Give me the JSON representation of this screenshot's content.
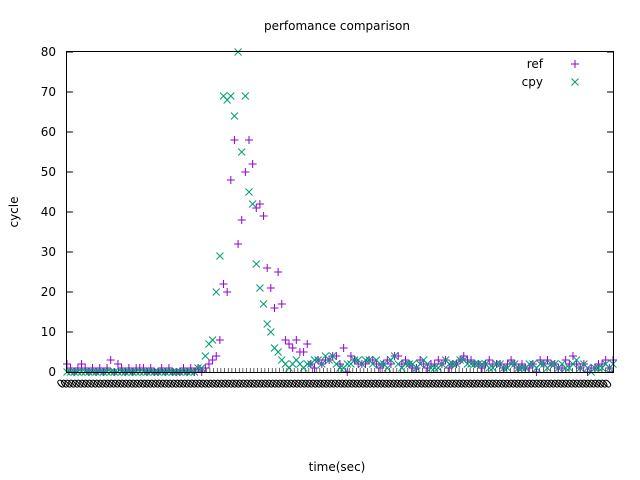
{
  "chart_data": {
    "type": "scatter",
    "title": "perfomance comparison",
    "xlabel": "time(sec)",
    "ylabel": "cycle",
    "xlim": [
      0,
      150
    ],
    "ylim": [
      0,
      80
    ],
    "yticks": [
      0,
      10,
      20,
      30,
      40,
      50,
      60,
      70,
      80
    ],
    "xtick_label": "0",
    "xtick_count": 150,
    "legend_position": "top-right",
    "grid": false,
    "series": [
      {
        "name": "ref",
        "marker": "plus",
        "color": "#9400d3",
        "x": [
          0,
          1,
          2,
          3,
          4,
          5,
          6,
          7,
          8,
          9,
          10,
          11,
          12,
          13,
          14,
          15,
          16,
          17,
          18,
          19,
          20,
          21,
          22,
          23,
          24,
          25,
          26,
          27,
          28,
          29,
          30,
          31,
          32,
          33,
          34,
          35,
          36,
          37,
          38,
          39,
          40,
          41,
          42,
          43,
          44,
          45,
          46,
          47,
          48,
          49,
          50,
          51,
          52,
          53,
          54,
          55,
          56,
          57,
          58,
          59,
          60,
          61,
          62,
          63,
          64,
          65,
          66,
          67,
          68,
          69,
          70,
          71,
          72,
          73,
          74,
          75,
          76,
          77,
          78,
          79,
          80,
          81,
          82,
          83,
          84,
          85,
          86,
          87,
          88,
          89,
          90,
          91,
          92,
          93,
          94,
          95,
          96,
          97,
          98,
          99,
          100,
          101,
          102,
          103,
          104,
          105,
          106,
          107,
          108,
          109,
          110,
          111,
          112,
          113,
          114,
          115,
          116,
          117,
          118,
          119,
          120,
          121,
          122,
          123,
          124,
          125,
          126,
          127,
          128,
          129,
          130,
          131,
          132,
          133,
          134,
          135,
          136,
          137,
          138,
          139,
          140,
          141,
          142,
          143,
          144,
          145,
          146,
          147,
          148,
          149,
          150
        ],
        "y": [
          2,
          1,
          0,
          1,
          2,
          1,
          0,
          1,
          0,
          1,
          0,
          1,
          3,
          0,
          2,
          1,
          0,
          1,
          0,
          1,
          1,
          1,
          0,
          1,
          0,
          0,
          1,
          0,
          1,
          0,
          0,
          0,
          1,
          0,
          1,
          0,
          1,
          0,
          1,
          2,
          3,
          4,
          8,
          22,
          20,
          48,
          58,
          32,
          38,
          50,
          58,
          52,
          41,
          42,
          39,
          26,
          21,
          16,
          25,
          17,
          8,
          7,
          6,
          8,
          5,
          5,
          7,
          2,
          1,
          3,
          2,
          3,
          3,
          4,
          4,
          2,
          6,
          0,
          4,
          3,
          2,
          2,
          2,
          3,
          3,
          2,
          1,
          2,
          3,
          2,
          4,
          4,
          2,
          3,
          2,
          1,
          1,
          3,
          2,
          1,
          2,
          2,
          3,
          2,
          3,
          1,
          2,
          2,
          3,
          4,
          3,
          3,
          2,
          2,
          1,
          2,
          3,
          2,
          2,
          2,
          1,
          2,
          3,
          2,
          1,
          2,
          1,
          1,
          2,
          0,
          3,
          2,
          3,
          2,
          2,
          1,
          1,
          3,
          2,
          4,
          2,
          1,
          2,
          0,
          1,
          1,
          2,
          2,
          3,
          1,
          3
        ]
      },
      {
        "name": "cpy",
        "marker": "cross",
        "color": "#009e73",
        "x": [
          0,
          1,
          2,
          3,
          4,
          5,
          6,
          7,
          8,
          9,
          10,
          11,
          12,
          13,
          14,
          15,
          16,
          17,
          18,
          19,
          20,
          21,
          22,
          23,
          24,
          25,
          26,
          27,
          28,
          29,
          30,
          31,
          32,
          33,
          34,
          35,
          36,
          37,
          38,
          39,
          40,
          41,
          42,
          43,
          44,
          45,
          46,
          47,
          48,
          49,
          50,
          51,
          52,
          53,
          54,
          55,
          56,
          57,
          58,
          59,
          60,
          61,
          62,
          63,
          64,
          65,
          66,
          67,
          68,
          69,
          70,
          71,
          72,
          73,
          74,
          75,
          76,
          77,
          78,
          79,
          80,
          81,
          82,
          83,
          84,
          85,
          86,
          87,
          88,
          89,
          90,
          91,
          92,
          93,
          94,
          95,
          96,
          97,
          98,
          99,
          100,
          101,
          102,
          103,
          104,
          105,
          106,
          107,
          108,
          109,
          110,
          111,
          112,
          113,
          114,
          115,
          116,
          117,
          118,
          119,
          120,
          121,
          122,
          123,
          124,
          125,
          126,
          127,
          128,
          129,
          130,
          131,
          132,
          133,
          134,
          135,
          136,
          137,
          138,
          139,
          140,
          141,
          142,
          143,
          144,
          145,
          146,
          147,
          148,
          149,
          150
        ],
        "y": [
          0,
          0,
          0,
          0,
          0,
          0,
          0,
          0,
          0,
          0,
          0,
          0,
          0,
          0,
          0,
          0,
          0,
          0,
          0,
          0,
          0,
          0,
          0,
          0,
          0,
          0,
          0,
          0,
          0,
          0,
          0,
          0,
          0,
          0,
          0,
          0,
          1,
          1,
          4,
          7,
          8,
          20,
          29,
          69,
          68,
          69,
          64,
          80,
          55,
          69,
          45,
          42,
          27,
          21,
          17,
          12,
          10,
          6,
          5,
          3,
          2,
          1,
          2,
          3,
          2,
          1,
          2,
          2,
          3,
          3,
          2,
          4,
          3,
          4,
          2,
          1,
          1,
          2,
          2,
          3,
          3,
          2,
          3,
          3,
          2,
          3,
          2,
          2,
          1,
          3,
          4,
          2,
          1,
          2,
          2,
          2,
          1,
          2,
          3,
          2,
          1,
          1,
          1,
          2,
          3,
          2,
          2,
          2,
          3,
          3,
          2,
          2,
          2,
          2,
          2,
          2,
          1,
          1,
          2,
          2,
          1,
          1,
          2,
          2,
          1,
          1,
          1,
          2,
          2,
          1,
          2,
          2,
          1,
          2,
          2,
          1,
          2,
          1,
          1,
          2,
          3,
          1,
          2,
          1,
          0,
          1,
          1,
          1,
          2,
          1,
          2
        ]
      }
    ]
  }
}
